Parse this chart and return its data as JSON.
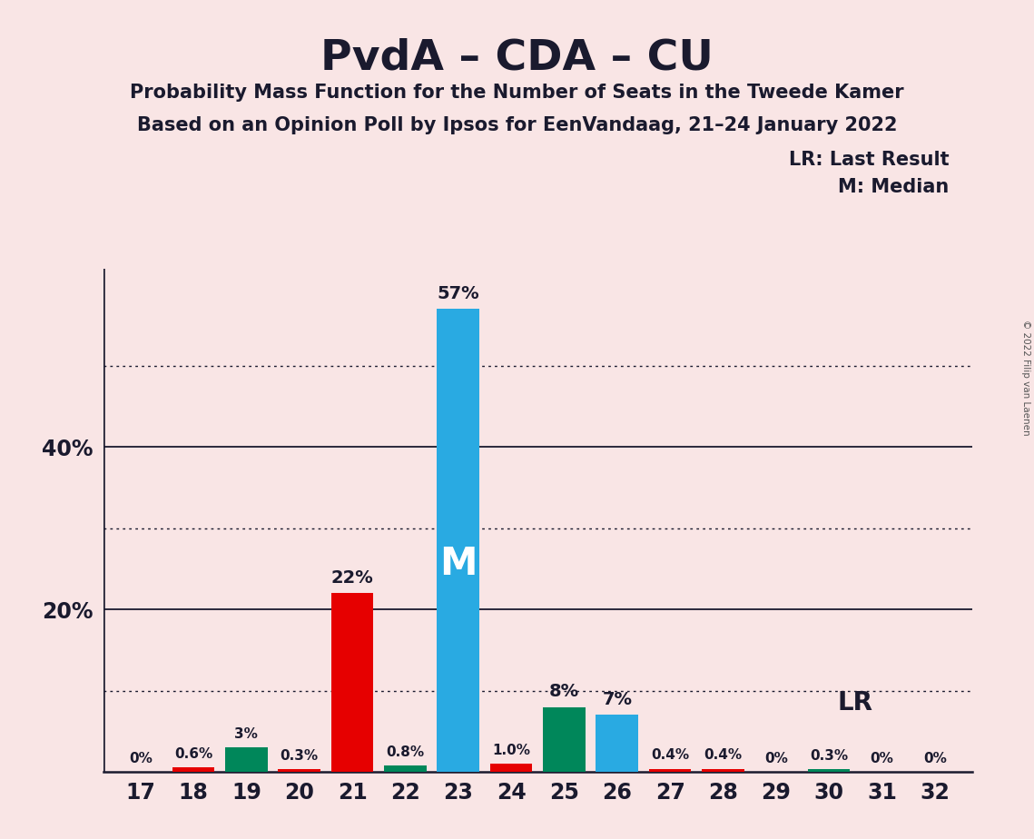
{
  "title": "PvdA – CDA – CU",
  "subtitle1": "Probability Mass Function for the Number of Seats in the Tweede Kamer",
  "subtitle2": "Based on an Opinion Poll by Ipsos for EenVandaag, 21–24 January 2022",
  "copyright": "© 2022 Filip van Laenen",
  "legend_lr": "LR: Last Result",
  "legend_m": "M: Median",
  "seats": [
    17,
    18,
    19,
    20,
    21,
    22,
    23,
    24,
    25,
    26,
    27,
    28,
    29,
    30,
    31,
    32
  ],
  "values": [
    0.0,
    0.6,
    3.0,
    0.3,
    22.0,
    0.8,
    57.0,
    1.0,
    8.0,
    7.0,
    0.4,
    0.4,
    0.0,
    0.3,
    0.0,
    0.0
  ],
  "labels": [
    "0%",
    "0.6%",
    "3%",
    "0.3%",
    "22%",
    "0.8%",
    "57%",
    "1.0%",
    "8%",
    "7%",
    "0.4%",
    "0.4%",
    "0%",
    "0.3%",
    "0%",
    "0%"
  ],
  "bar_colors": [
    "#e60000",
    "#e60000",
    "#00875a",
    "#e60000",
    "#e60000",
    "#00875a",
    "#29aae2",
    "#e60000",
    "#00875a",
    "#29aae2",
    "#e60000",
    "#e60000",
    "#29aae2",
    "#00875a",
    "#e60000",
    "#e60000"
  ],
  "median_seat": 23,
  "lr_seat": 29,
  "background_color": "#f9e5e5",
  "ylim": [
    0,
    62
  ],
  "solid_yticks": [
    20,
    40
  ],
  "dotted_yticks": [
    10,
    30,
    50
  ],
  "bar_width": 0.8
}
